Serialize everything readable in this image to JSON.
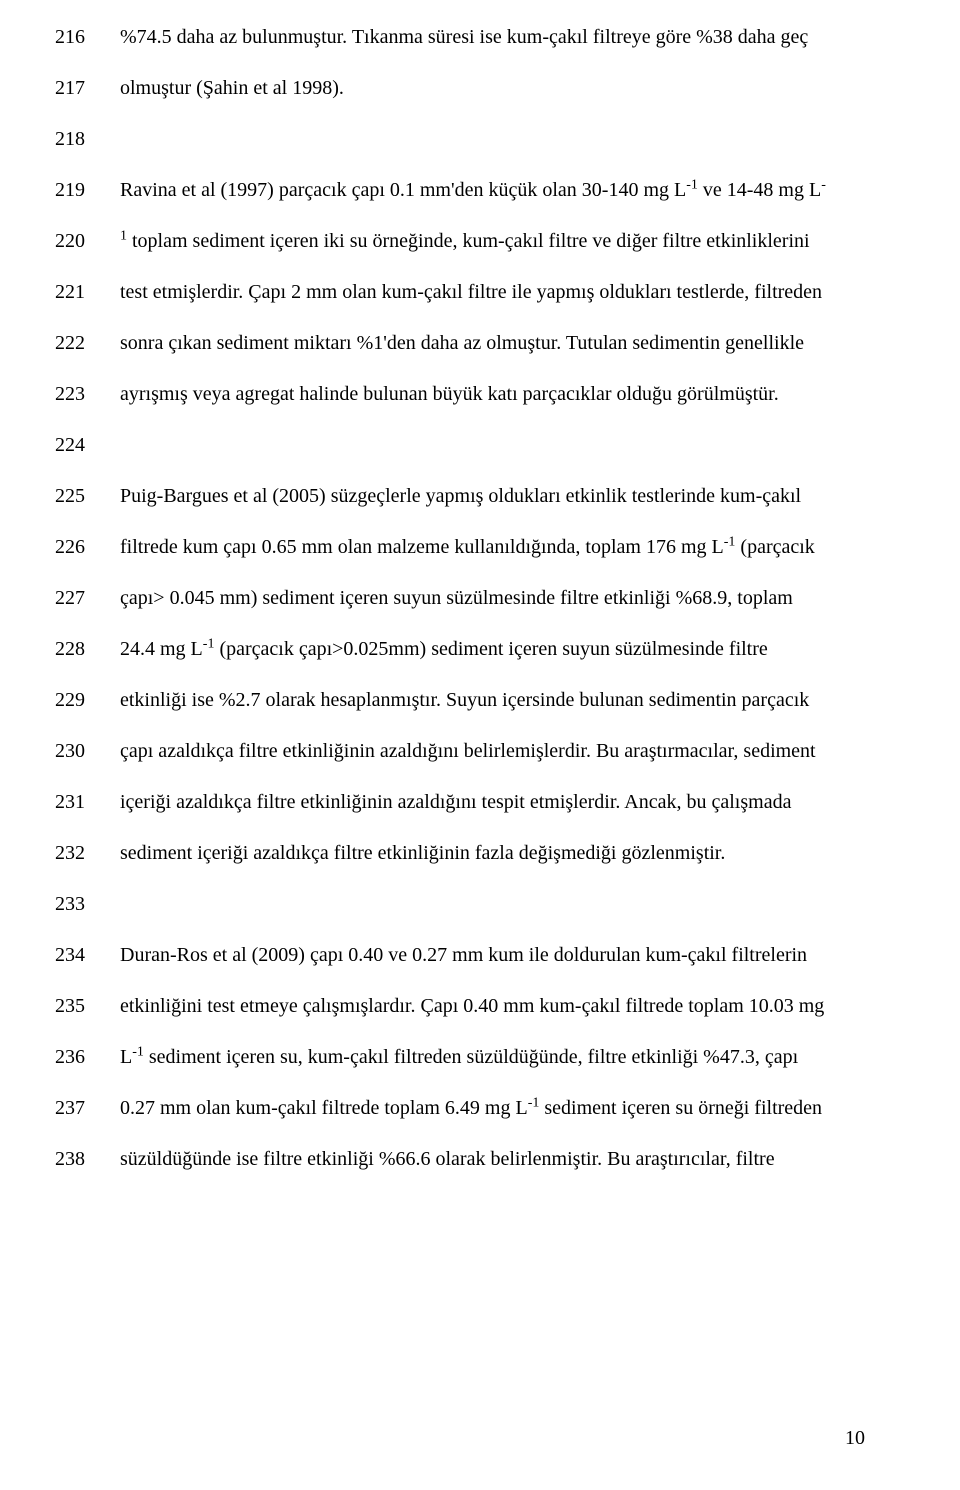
{
  "page": {
    "number": "10",
    "font_family": "Times New Roman",
    "font_size_pt": 15,
    "text_color": "#000000",
    "background_color": "#ffffff",
    "line_spacing": 2.55
  },
  "lines": [
    {
      "num": "216",
      "text": "%74.5 daha az bulunmuştur. Tıkanma süresi ise kum-çakıl filtreye göre %38 daha geç",
      "justify": true
    },
    {
      "num": "217",
      "text": "olmuştur (Şahin et al 1998).",
      "justify": false
    },
    {
      "num": "218",
      "text": "",
      "justify": false
    },
    {
      "num": "219",
      "text": "Ravina et al (1997) parçacık çapı 0.1 mm'den küçük olan 30-140 mg L⁻¹ ve 14-48 mg L⁻",
      "justify": true,
      "sup": [
        {
          "find": "⁻¹",
          "repl": "-1"
        },
        {
          "find": "⁻",
          "repl": "-"
        }
      ]
    },
    {
      "num": "220",
      "text": "¹ toplam sediment içeren iki su örneğinde, kum-çakıl filtre ve diğer filtre etkinliklerini",
      "justify": true
    },
    {
      "num": "221",
      "text": "test etmişlerdir. Çapı 2 mm olan kum-çakıl filtre ile yapmış oldukları testlerde, filtreden",
      "justify": true
    },
    {
      "num": "222",
      "text": "sonra çıkan sediment miktarı %1'den daha az olmuştur. Tutulan sedimentin genellikle",
      "justify": true
    },
    {
      "num": "223",
      "text": "ayrışmış veya agregat halinde bulunan büyük katı parçacıklar olduğu görülmüştür.",
      "justify": false
    },
    {
      "num": "224",
      "text": "",
      "justify": false
    },
    {
      "num": "225",
      "text": "Puig-Bargues et al (2005) süzgeçlerle yapmış oldukları etkinlik testlerinde kum-çakıl",
      "justify": true
    },
    {
      "num": "226",
      "text": "filtrede kum çapı 0.65 mm olan malzeme kullanıldığında, toplam 176 mg L⁻¹ (parçacık",
      "justify": true
    },
    {
      "num": "227",
      "text": "çapı> 0.045 mm) sediment içeren suyun süzülmesinde filtre etkinliği %68.9, toplam",
      "justify": true
    },
    {
      "num": "228",
      "text": "24.4 mg L⁻¹ (parçacık çapı>0.025mm) sediment içeren suyun süzülmesinde filtre",
      "justify": true
    },
    {
      "num": "229",
      "text": "etkinliği ise %2.7 olarak hesaplanmıştır. Suyun içersinde bulunan sedimentin parçacık",
      "justify": true
    },
    {
      "num": "230",
      "text": "çapı azaldıkça filtre etkinliğinin azaldığını belirlemişlerdir. Bu araştırmacılar, sediment",
      "justify": true
    },
    {
      "num": "231",
      "text": "içeriği azaldıkça filtre etkinliğinin azaldığını tespit etmişlerdir. Ancak, bu çalışmada",
      "justify": true
    },
    {
      "num": "232",
      "text": "sediment içeriği azaldıkça filtre etkinliğinin fazla değişmediği gözlenmiştir.",
      "justify": false
    },
    {
      "num": "233",
      "text": "",
      "justify": false
    },
    {
      "num": "234",
      "text": "Duran-Ros et al (2009) çapı 0.40 ve 0.27 mm kum ile doldurulan kum-çakıl filtrelerin",
      "justify": true
    },
    {
      "num": "235",
      "text": "etkinliğini test etmeye çalışmışlardır. Çapı 0.40 mm kum-çakıl filtrede toplam 10.03 mg",
      "justify": true
    },
    {
      "num": "236",
      "text": "L⁻¹ sediment içeren su, kum-çakıl filtreden süzüldüğünde, filtre etkinliği %47.3, çapı",
      "justify": true
    },
    {
      "num": "237",
      "text": "0.27 mm olan kum-çakıl filtrede toplam 6.49 mg L⁻¹ sediment içeren su örneği filtreden",
      "justify": true
    },
    {
      "num": "238",
      "text": "süzüldüğünde ise filtre etkinliği %66.6 olarak belirlenmiştir. Bu araştırıcılar, filtre",
      "justify": true
    }
  ]
}
